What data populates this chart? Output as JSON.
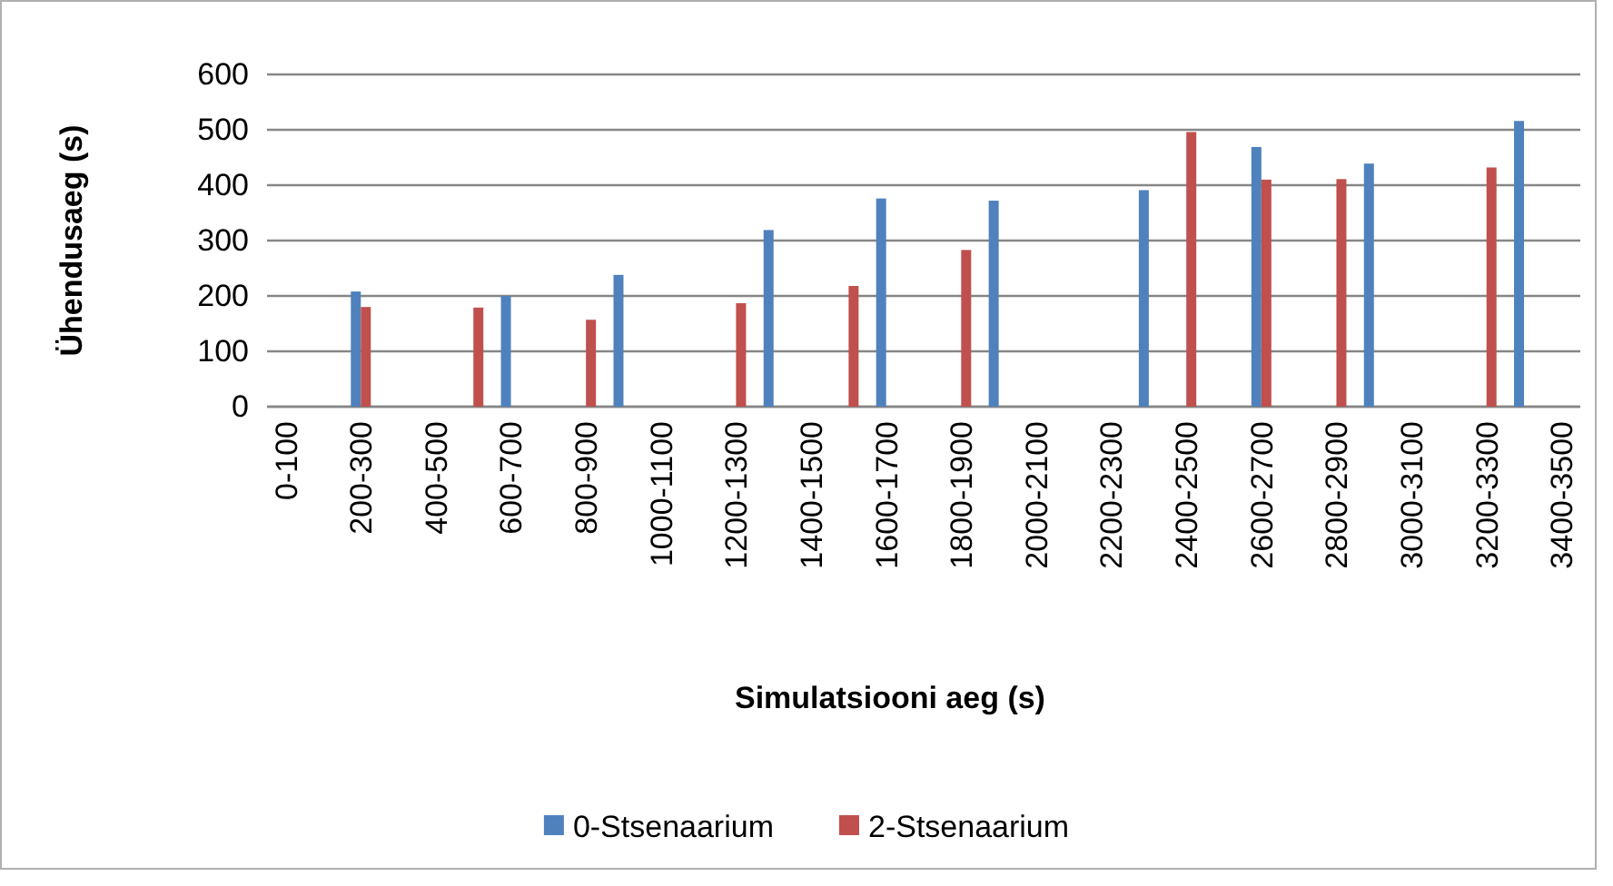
{
  "chart_data": {
    "type": "bar",
    "xlabel": "Simulatsiooni aeg (s)",
    "ylabel": "Ühendusaeg (s)",
    "categories": [
      "0-100",
      null,
      "200-300",
      null,
      "400-500",
      null,
      "600-700",
      null,
      "800-900",
      null,
      "1000-1100",
      null,
      "1200-1300",
      null,
      "1400-1500",
      null,
      "1600-1700",
      null,
      "1800-1900",
      null,
      "2000-2100",
      null,
      "2200-2300",
      null,
      "2400-2500",
      null,
      "2600-2700",
      null,
      "2800-2900",
      null,
      "3000-3100",
      null,
      "3200-3300",
      null,
      "3400-3500"
    ],
    "series": [
      {
        "name": "0-Stsenaarium",
        "color": "#4f81bd",
        "values": [
          null,
          null,
          208,
          null,
          null,
          null,
          200,
          null,
          null,
          238,
          null,
          null,
          null,
          319,
          null,
          null,
          376,
          null,
          null,
          372,
          null,
          null,
          null,
          391,
          null,
          null,
          469,
          null,
          null,
          439,
          null,
          null,
          null,
          516,
          null
        ]
      },
      {
        "name": "2-Stsenaarium",
        "color": "#c0504d",
        "values": [
          null,
          null,
          180,
          null,
          null,
          179,
          null,
          null,
          157,
          null,
          null,
          null,
          187,
          null,
          null,
          218,
          null,
          null,
          283,
          null,
          null,
          null,
          null,
          null,
          496,
          null,
          410,
          null,
          411,
          null,
          null,
          null,
          432,
          null,
          null
        ]
      }
    ],
    "ylim": [
      0,
      600
    ],
    "yticks": [
      0,
      100,
      200,
      300,
      400,
      500,
      600
    ],
    "grid": "y",
    "legend": "bottom"
  }
}
